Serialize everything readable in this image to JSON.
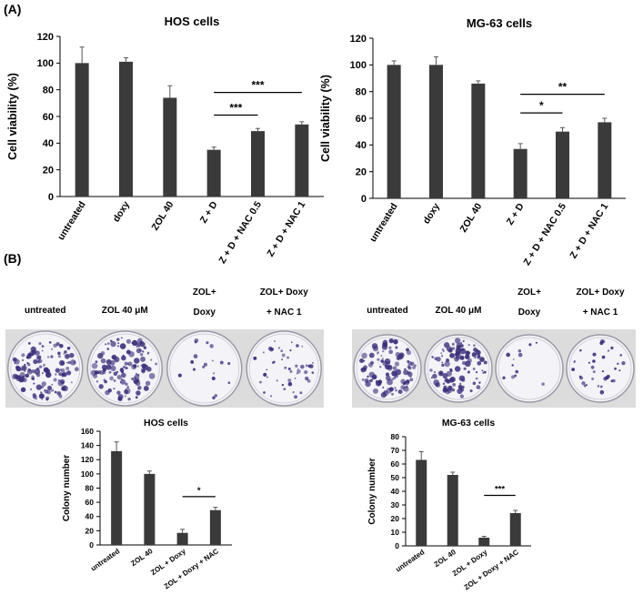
{
  "panel_labels": {
    "a": "(A)",
    "b": "(B)"
  },
  "colors": {
    "bar": "#3a3a3a",
    "axis": "#000000",
    "plate_bg": "#dcdcdc",
    "stain": "#3b2f7a"
  },
  "dishes": {
    "hos": {
      "labels": [
        "untreated",
        "ZOL 40 μM",
        "ZOL+|Doxy",
        "ZOL+ Doxy|+ NAC 1"
      ],
      "densities": [
        1.0,
        0.95,
        0.1,
        0.35
      ]
    },
    "mg63": {
      "labels": [
        "untreated",
        "ZOL 40 μM",
        "ZOL+|Doxy",
        "ZOL+ Doxy|+ NAC 1"
      ],
      "densities": [
        0.85,
        0.85,
        0.05,
        0.25
      ]
    }
  },
  "chart_data": [
    {
      "id": "viability_hos",
      "type": "bar",
      "title": "HOS cells",
      "ylabel": "Cell viability (%)",
      "categories": [
        "untreated",
        "doxy",
        "ZOL 40",
        "Z + D",
        "Z + D + NAC 0.5",
        "Z + D + NAC 1"
      ],
      "values": [
        100,
        101,
        74,
        35,
        49,
        54
      ],
      "errors": [
        12,
        3,
        9,
        2,
        2,
        2
      ],
      "ylim": [
        0,
        120
      ],
      "yticks": [
        0,
        20,
        40,
        60,
        80,
        100,
        120
      ],
      "significance": [
        {
          "from": 3,
          "to": 4,
          "label": "***"
        },
        {
          "from": 3,
          "to": 5,
          "label": "***"
        }
      ]
    },
    {
      "id": "viability_mg63",
      "type": "bar",
      "title": "MG-63 cells",
      "ylabel": "Cell viability (%)",
      "categories": [
        "untreated",
        "doxy",
        "ZOL 40",
        "Z + D",
        "Z + D + NAC 0.5",
        "Z + D + NAC 1"
      ],
      "values": [
        100,
        100,
        86,
        37,
        50,
        57
      ],
      "errors": [
        3,
        6,
        2,
        4,
        3,
        3
      ],
      "ylim": [
        0,
        120
      ],
      "yticks": [
        0,
        20,
        40,
        60,
        80,
        100,
        120
      ],
      "significance": [
        {
          "from": 3,
          "to": 4,
          "label": "*"
        },
        {
          "from": 3,
          "to": 5,
          "label": "**"
        }
      ]
    },
    {
      "id": "colony_hos",
      "type": "bar",
      "title": "HOS cells",
      "ylabel": "Colony number",
      "categories": [
        "untreated",
        "ZOL 40",
        "ZOL + Doxy",
        "ZOL + Doxy + NAC"
      ],
      "values": [
        132,
        100,
        17,
        49
      ],
      "errors": [
        13,
        4,
        5,
        4
      ],
      "ylim": [
        0,
        160
      ],
      "yticks": [
        0,
        20,
        40,
        60,
        80,
        100,
        120,
        140,
        160
      ],
      "significance": [
        {
          "from": 2,
          "to": 3,
          "label": "*"
        }
      ]
    },
    {
      "id": "colony_mg63",
      "type": "bar",
      "title": "MG-63 cells",
      "ylabel": "Colony number",
      "categories": [
        "untreated",
        "ZOL 40",
        "ZOL + Doxy",
        "ZOL + Doxy + NAC"
      ],
      "values": [
        63,
        52,
        6,
        24
      ],
      "errors": [
        6,
        2,
        1,
        2
      ],
      "ylim": [
        0,
        80
      ],
      "yticks": [
        0,
        10,
        20,
        30,
        40,
        50,
        60,
        70,
        80
      ],
      "significance": [
        {
          "from": 2,
          "to": 3,
          "label": "***"
        }
      ]
    }
  ]
}
